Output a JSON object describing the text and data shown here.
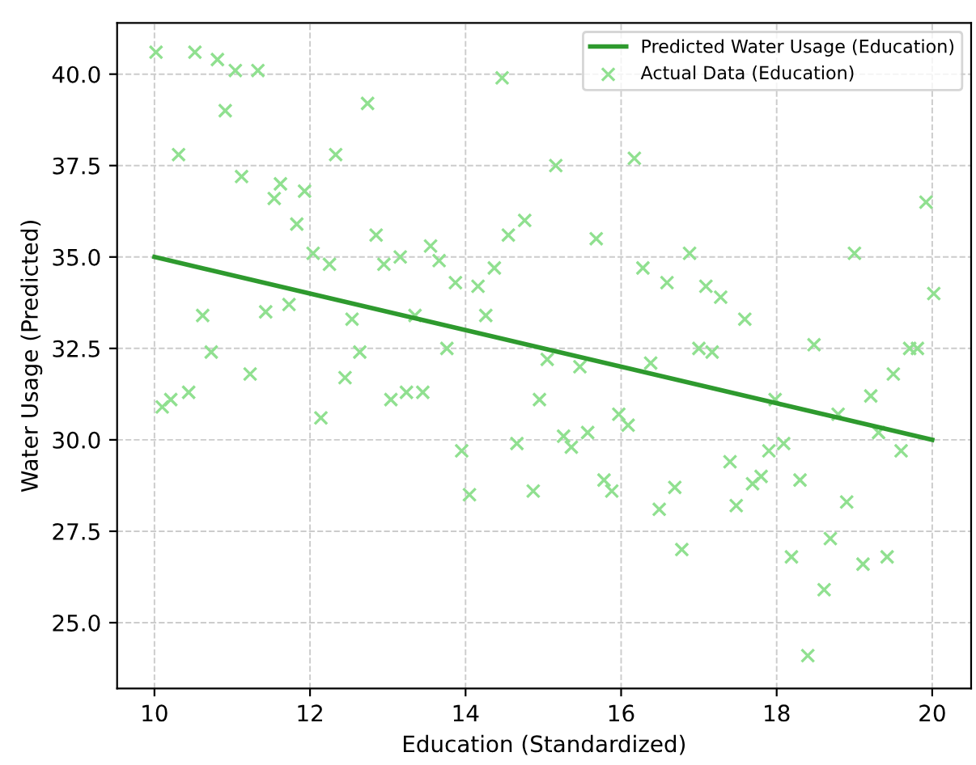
{
  "chart_data": {
    "type": "scatter",
    "xlabel": "Education (Standardized)",
    "ylabel": "Water Usage (Predicted)",
    "xlim": [
      9.52,
      20.5
    ],
    "ylim": [
      23.2,
      41.4
    ],
    "xticks": [
      10,
      12,
      14,
      16,
      18,
      20
    ],
    "yticks": [
      {
        "value": 25,
        "label": "25.0"
      },
      {
        "value": 27.5,
        "label": "27.5"
      },
      {
        "value": 30,
        "label": "30.0"
      },
      {
        "value": 32.5,
        "label": "32.5"
      },
      {
        "value": 35,
        "label": "35.0"
      },
      {
        "value": 37.5,
        "label": "37.5"
      },
      {
        "value": 40,
        "label": "40.0"
      }
    ],
    "grid": true,
    "legend": "top right",
    "series": [
      {
        "name": "Predicted Water Usage (Education)",
        "type": "line",
        "color": "#2e9a2e",
        "marker": "none",
        "line_style": "solid",
        "x": [
          10,
          20
        ],
        "values": [
          35,
          30
        ]
      },
      {
        "name": "Actual Data (Education)",
        "color": "#90e090",
        "marker": "cross",
        "x": [
          10.02,
          10.52,
          10.81,
          11.04,
          11.33,
          10.91,
          10.31,
          11.12,
          11.54,
          11.62,
          11.93,
          11.83,
          12.04,
          12.25,
          12.33,
          12.74,
          12.85,
          12.95,
          13.16,
          13.55,
          13.66,
          13.87,
          14.16,
          14.26,
          14.37,
          14.55,
          14.76,
          14.47,
          10.62,
          11.43,
          11.73,
          12.54,
          13.35,
          10.73,
          12.64,
          13.76,
          10.1,
          10.21,
          10.44,
          11.23,
          12.14,
          12.45,
          13.04,
          13.24,
          13.45,
          13.95,
          14.05,
          14.66,
          14.87,
          14.95,
          15.16,
          16.17,
          15.68,
          16.28,
          16.59,
          16.88,
          17.09,
          17.28,
          17.59,
          19.0,
          19.92,
          20.02,
          18.48,
          17.0,
          17.17,
          19.71,
          19.81,
          15.05,
          16.38,
          15.47,
          15.26,
          15.36,
          15.57,
          15.97,
          16.09,
          15.78,
          15.88,
          16.49,
          16.69,
          16.78,
          17.4,
          17.48,
          17.69,
          17.8,
          17.9,
          18.09,
          17.98,
          18.3,
          18.19,
          18.4,
          18.61,
          18.69,
          18.79,
          18.9,
          19.11,
          19.21,
          19.31,
          19.42,
          19.5,
          19.6
        ],
        "values": [
          40.6,
          40.6,
          40.4,
          40.1,
          40.1,
          39.0,
          37.8,
          37.2,
          36.6,
          37.0,
          36.8,
          35.9,
          35.1,
          34.8,
          37.8,
          39.2,
          35.6,
          34.8,
          35.0,
          35.3,
          34.9,
          34.3,
          34.2,
          33.4,
          34.7,
          35.6,
          36.0,
          39.9,
          33.4,
          33.5,
          33.7,
          33.3,
          33.4,
          32.4,
          32.4,
          32.5,
          30.9,
          31.1,
          31.3,
          31.8,
          30.6,
          31.7,
          31.1,
          31.3,
          31.3,
          29.7,
          28.5,
          29.9,
          28.6,
          31.1,
          37.5,
          37.7,
          35.5,
          34.7,
          34.3,
          35.1,
          34.2,
          33.9,
          33.3,
          35.1,
          36.5,
          34.0,
          32.6,
          32.5,
          32.4,
          32.5,
          32.5,
          32.2,
          32.1,
          32.0,
          30.1,
          29.8,
          30.2,
          30.7,
          30.4,
          28.9,
          28.6,
          28.1,
          28.7,
          27.0,
          29.4,
          28.2,
          28.8,
          29.0,
          29.7,
          29.9,
          31.1,
          28.9,
          26.8,
          24.1,
          25.9,
          27.3,
          30.7,
          28.3,
          26.6,
          31.2,
          30.2,
          26.8,
          31.8,
          29.7
        ]
      }
    ]
  }
}
